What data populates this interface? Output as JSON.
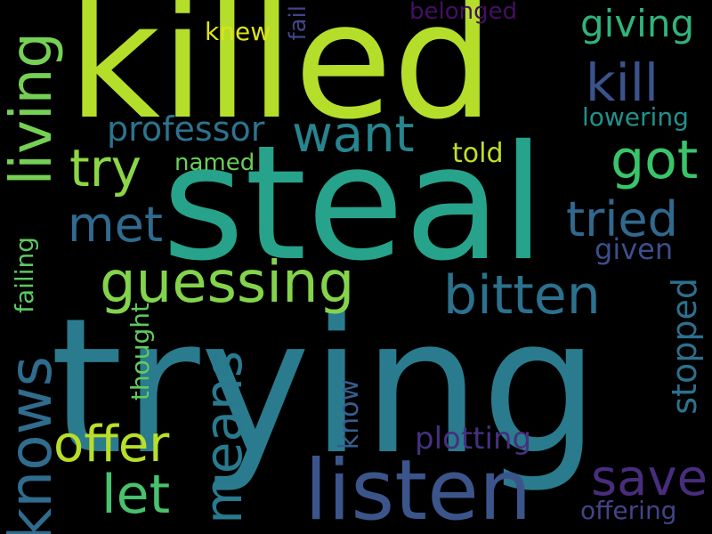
{
  "words": {
    "trying": {
      "text": "trying",
      "color": "#2a7b8e"
    },
    "killed": {
      "text": "killed",
      "color": "#b5de2b"
    },
    "steal": {
      "text": "steal",
      "color": "#26a38a"
    },
    "listen": {
      "text": "listen",
      "color": "#3b558b"
    },
    "guessing": {
      "text": "guessing",
      "color": "#84d44b"
    },
    "bitten": {
      "text": "bitten",
      "color": "#2c718e"
    },
    "want": {
      "text": "want",
      "color": "#26858e"
    },
    "got": {
      "text": "got",
      "color": "#3ac46a"
    },
    "tried": {
      "text": "tried",
      "color": "#31688e"
    },
    "try": {
      "text": "try",
      "color": "#8cd646"
    },
    "met": {
      "text": "met",
      "color": "#306a8e"
    },
    "living": {
      "text": "living",
      "color": "#75d054"
    },
    "knows": {
      "text": "knows",
      "color": "#2f6c8e"
    },
    "offer": {
      "text": "offer",
      "color": "#b8de29"
    },
    "let": {
      "text": "let",
      "color": "#4ac16d"
    },
    "means": {
      "text": "means",
      "color": "#297a8e"
    },
    "save": {
      "text": "save",
      "color": "#472d7b"
    },
    "kill": {
      "text": "kill",
      "color": "#3b528b"
    },
    "professor": {
      "text": "professor",
      "color": "#2c738e"
    },
    "giving": {
      "text": "giving",
      "color": "#2fb47c"
    },
    "stopped": {
      "text": "stopped",
      "color": "#2d708e"
    },
    "plotting": {
      "text": "plotting",
      "color": "#46307e"
    },
    "lowering": {
      "text": "lowering",
      "color": "#21918c"
    },
    "given": {
      "text": "given",
      "color": "#3d4e8a"
    },
    "offering": {
      "text": "offering",
      "color": "#414487"
    },
    "belonged": {
      "text": "belonged",
      "color": "#440f62"
    },
    "knew": {
      "text": "knew",
      "color": "#dde318"
    },
    "fail": {
      "text": "fail",
      "color": "#404688"
    },
    "told": {
      "text": "told",
      "color": "#c0df25"
    },
    "named": {
      "text": "named",
      "color": "#6ccd5a"
    },
    "thought": {
      "text": "thought",
      "color": "#60ca60"
    },
    "failing": {
      "text": "failing",
      "color": "#5dc863"
    },
    "know": {
      "text": "know",
      "color": "#365d8d"
    }
  }
}
